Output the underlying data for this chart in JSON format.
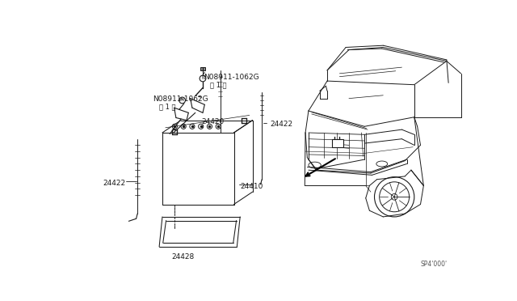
{
  "bg_color": "#ffffff",
  "line_color": "#1a1a1a",
  "fig_width": 6.4,
  "fig_height": 3.72,
  "dpi": 100,
  "labels": {
    "part_24410": "24410",
    "part_24420": "24420",
    "part_24422": "24422",
    "part_24428": "24428",
    "bolt_top": "N08911-1062G",
    "bolt_top_qty": "＜ 1 ＞",
    "bolt_bot": "N08911-1062G",
    "bolt_bot_qty": "＜ 1 ＞",
    "ref": "SP4’000’"
  }
}
